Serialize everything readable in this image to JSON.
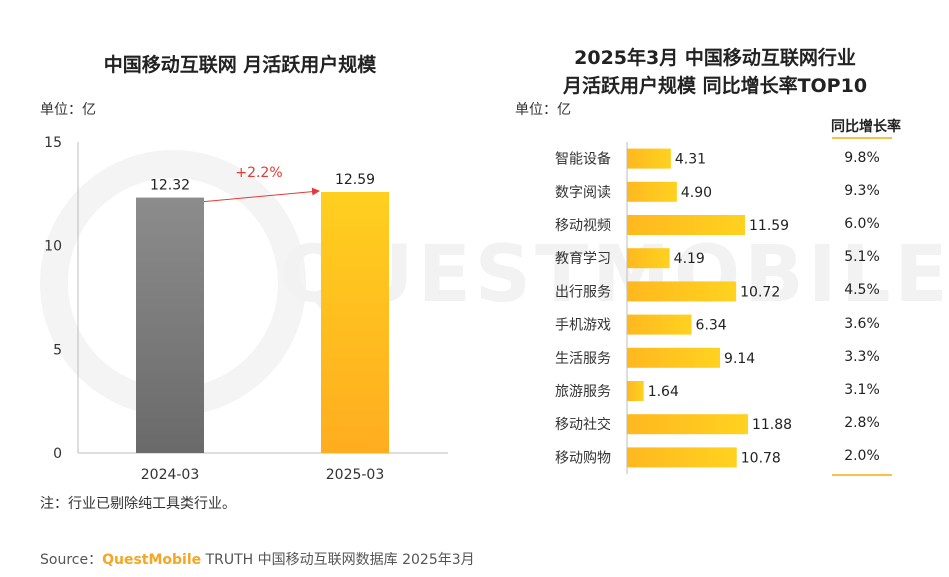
{
  "chart_data": [
    {
      "type": "bar",
      "title": "中国移动互联网 月活跃用户规模",
      "unit": "单位：亿",
      "categories": [
        "2024-03",
        "2025-03"
      ],
      "values": [
        12.32,
        12.59
      ],
      "data_labels": [
        "12.32",
        "12.59"
      ],
      "ylim": [
        0,
        15
      ],
      "yticks": [
        0,
        5,
        10,
        15
      ],
      "annotation": "+2.2%",
      "colors": [
        "#7a7a7a",
        "#ffbf1f"
      ],
      "grid": false
    },
    {
      "type": "bar",
      "orientation": "horizontal",
      "title_line1": "2025年3月 中国移动互联网行业",
      "title_line2": "月活跃用户规模 同比增长率TOP10",
      "unit": "单位：亿",
      "categories": [
        "智能设备",
        "数字阅读",
        "移动视频",
        "教育学习",
        "出行服务",
        "手机游戏",
        "生活服务",
        "旅游服务",
        "移动社交",
        "移动购物"
      ],
      "values": [
        4.31,
        4.9,
        11.59,
        4.19,
        10.72,
        6.34,
        9.14,
        1.64,
        11.88,
        10.78
      ],
      "data_labels": [
        "4.31",
        "4.90",
        "11.59",
        "4.19",
        "10.72",
        "6.34",
        "9.14",
        "1.64",
        "11.88",
        "10.78"
      ],
      "growth_header": "同比增长率",
      "growth": [
        "9.8%",
        "9.3%",
        "6.0%",
        "5.1%",
        "4.5%",
        "3.6%",
        "3.3%",
        "3.1%",
        "2.8%",
        "2.0%"
      ],
      "xlim": [
        0,
        12
      ],
      "color": "#ffbf1f",
      "grid": false
    }
  ],
  "watermark": "QUESTMOBILE",
  "note": "注：行业已剔除纯工具类行业。",
  "source": {
    "prefix": "Source：",
    "brand": "QuestMobile",
    "suffix": " TRUTH 中国移动互联网数据库 2025年3月"
  }
}
